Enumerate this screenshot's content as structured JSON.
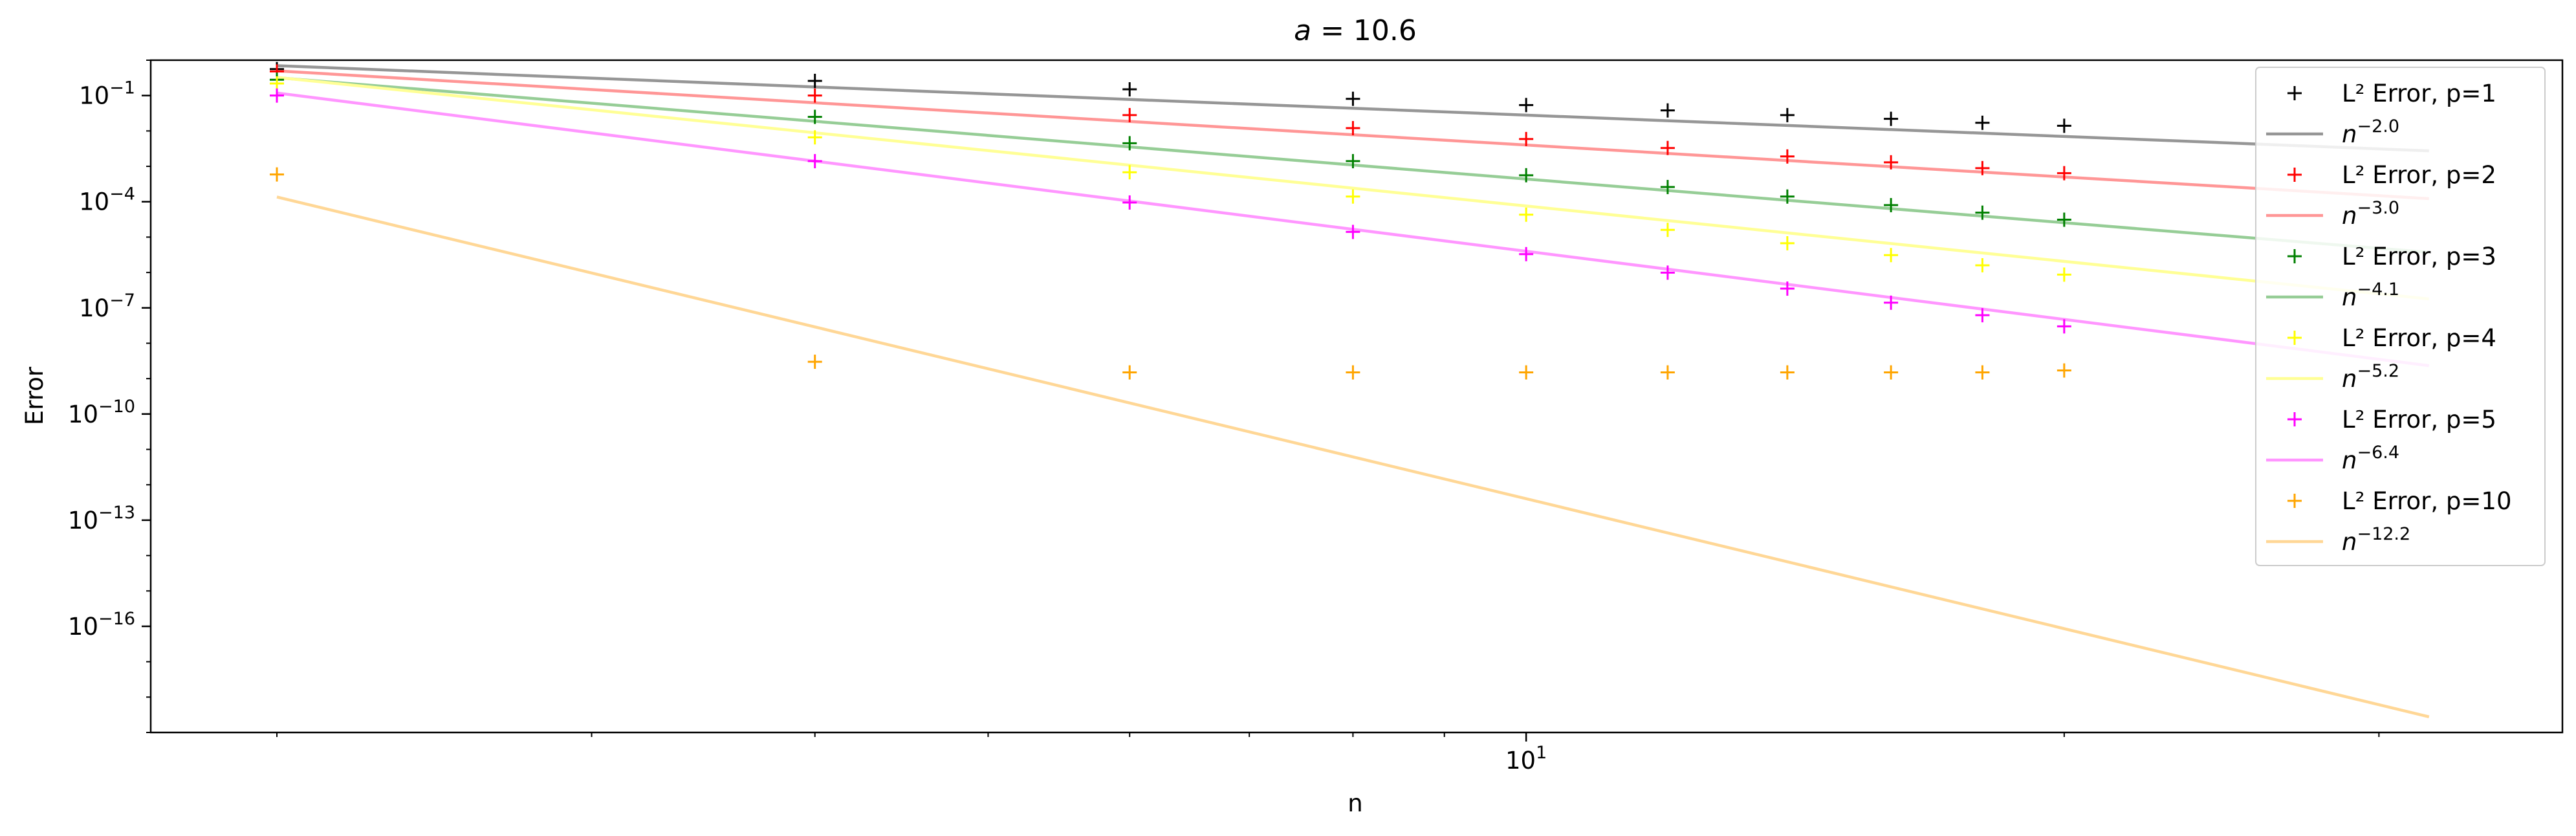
{
  "chart_data": {
    "type": "line",
    "title_parts": [
      "a",
      " = 10.6"
    ],
    "xlabel": "n",
    "ylabel": "Error",
    "xscale": "log",
    "yscale": "log",
    "xlim": [
      1.7,
      38
    ],
    "ylim": [
      1e-19,
      1
    ],
    "grid": false,
    "legend_position": "top-right",
    "x_ticks_major": [
      {
        "value": 10,
        "base": "10",
        "exp": "1"
      }
    ],
    "x_ticks_minor": [
      2,
      3,
      4,
      5,
      6,
      7,
      8,
      9,
      20,
      30
    ],
    "y_ticks": [
      {
        "value": 0.1,
        "base": "10",
        "exp": "−1"
      },
      {
        "value": 0.0001,
        "base": "10",
        "exp": "−4"
      },
      {
        "value": 1e-07,
        "base": "10",
        "exp": "−7"
      },
      {
        "value": 1e-10,
        "base": "10",
        "exp": "−10"
      },
      {
        "value": 1e-13,
        "base": "10",
        "exp": "−13"
      },
      {
        "value": 1e-16,
        "base": "10",
        "exp": "−16"
      }
    ],
    "x": [
      2,
      4,
      6,
      8,
      10,
      12,
      14,
      16,
      18,
      20
    ],
    "series": [
      {
        "marker_name": "L² Error, p=1",
        "fit_name_base": "n",
        "fit_name_exp": "−2.0",
        "color": "#000000",
        "fit_color": "#969696",
        "exponent": 2.0,
        "fit_coeff": 2.8,
        "fit_x": [
          2,
          32
        ],
        "values": [
          0.56,
          0.26,
          0.15,
          0.081,
          0.054,
          0.038,
          0.028,
          0.022,
          0.017,
          0.014
        ]
      },
      {
        "marker_name": "L² Error, p=2",
        "fit_name_base": "n",
        "fit_name_exp": "−3.0",
        "color": "#ff0000",
        "fit_color": "#ff9696",
        "exponent": 3.0,
        "fit_coeff": 4.0,
        "fit_x": [
          2,
          32
        ],
        "values": [
          0.48,
          0.1,
          0.028,
          0.012,
          0.0059,
          0.0033,
          0.0019,
          0.0013,
          0.00089,
          0.00064
        ]
      },
      {
        "marker_name": "L² Error, p=3",
        "fit_name_base": "n",
        "fit_name_exp": "−4.1",
        "color": "#008000",
        "fit_color": "#96cd96",
        "exponent": 4.1,
        "fit_coeff": 5.5,
        "fit_x": [
          2,
          32
        ],
        "values": [
          0.28,
          0.025,
          0.0045,
          0.0014,
          0.00056,
          0.00026,
          0.00014,
          8e-05,
          4.9e-05,
          3.1e-05
        ]
      },
      {
        "marker_name": "L² Error, p=4",
        "fit_name_base": "n",
        "fit_name_exp": "−5.2",
        "color": "#ffff00",
        "fit_color": "#ffff96",
        "exponent": 5.2,
        "fit_coeff": 12,
        "fit_x": [
          2,
          32
        ],
        "values": [
          0.22,
          0.0066,
          0.00068,
          0.00014,
          4.3e-05,
          1.6e-05,
          6.7e-06,
          3.1e-06,
          1.6e-06,
          8.7e-07
        ]
      },
      {
        "marker_name": "L² Error, p=5",
        "fit_name_base": "n",
        "fit_name_exp": "−6.4",
        "color": "#ff00ff",
        "fit_color": "#ff96ff",
        "exponent": 6.4,
        "fit_coeff": 10,
        "fit_x": [
          2,
          32
        ],
        "values": [
          0.1,
          0.0014,
          9.5e-05,
          1.4e-05,
          3.3e-06,
          9.9e-07,
          3.5e-07,
          1.4e-07,
          6.2e-08,
          3e-08
        ]
      },
      {
        "marker_name": "L² Error, p=10",
        "fit_name_base": "n",
        "fit_name_exp": "−12.2",
        "color": "#ffa500",
        "fit_color": "#ffd796",
        "exponent": 12.2,
        "fit_coeff": 0.64,
        "fit_x": [
          2,
          32
        ],
        "values": [
          0.00059,
          3e-09,
          1.5e-09,
          1.5e-09,
          1.5e-09,
          1.5e-09,
          1.5e-09,
          1.5e-09,
          1.5e-09,
          1.7e-09
        ]
      }
    ]
  }
}
